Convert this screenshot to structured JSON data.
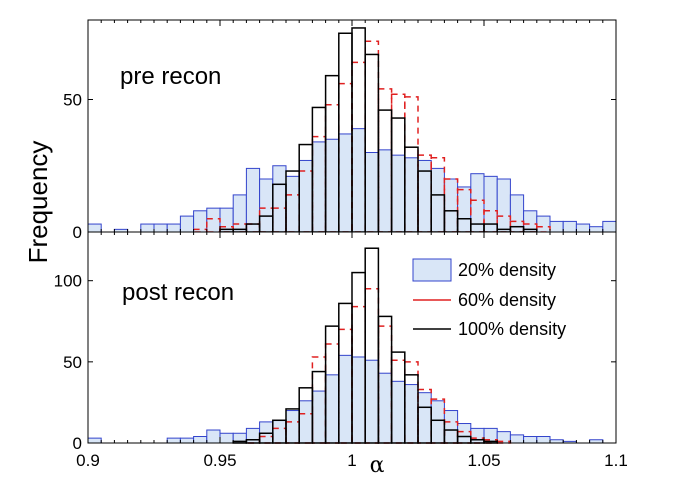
{
  "chart_data": {
    "type": "bar",
    "xlabel": "α",
    "ylabel": "Frequency",
    "xlim": [
      0.9,
      1.1
    ],
    "xticks": [
      "0.9",
      "0.95",
      "1",
      "1.05",
      "1.1"
    ],
    "bin_edges": [
      0.9,
      0.905,
      0.91,
      0.915,
      0.92,
      0.925,
      0.93,
      0.935,
      0.94,
      0.945,
      0.95,
      0.955,
      0.96,
      0.965,
      0.97,
      0.975,
      0.98,
      0.985,
      0.99,
      0.995,
      1.0,
      1.005,
      1.01,
      1.015,
      1.02,
      1.025,
      1.03,
      1.035,
      1.04,
      1.045,
      1.05,
      1.055,
      1.06,
      1.065,
      1.07,
      1.075,
      1.08,
      1.085,
      1.09,
      1.095,
      1.1
    ],
    "legend": [
      {
        "label": "20% density",
        "color_fill": "#d9e6f7",
        "color_edge": "#3344cc",
        "style": "filled"
      },
      {
        "label": "60% density",
        "color_edge": "#e02020",
        "style": "dashed"
      },
      {
        "label": "100% density",
        "color_edge": "#000000",
        "style": "solid"
      }
    ],
    "panels": [
      {
        "label": "pre recon",
        "ylim": [
          0,
          80
        ],
        "yticks": [
          "0",
          "50"
        ],
        "series": [
          {
            "name": "20% density",
            "values": [
              3,
              0,
              1,
              0,
              3,
              3,
              3,
              6,
              8,
              9,
              9,
              14,
              24,
              20,
              25,
              21,
              27,
              34,
              35,
              37,
              39,
              30,
              31,
              29,
              28,
              27,
              24,
              20,
              17,
              22,
              21,
              20,
              14,
              8,
              6,
              4,
              4,
              3,
              2,
              4
            ]
          },
          {
            "name": "60% density",
            "values": [
              0,
              0,
              0,
              0,
              0,
              0,
              0,
              0,
              1,
              5,
              2,
              3,
              3,
              9,
              9,
              14,
              23,
              36,
              48,
              56,
              64,
              72,
              54,
              52,
              51,
              29,
              28,
              20,
              16,
              12,
              8,
              6,
              4,
              3,
              2,
              0,
              0,
              0,
              0,
              0
            ]
          },
          {
            "name": "100% density",
            "values": [
              0,
              0,
              0,
              0,
              0,
              0,
              0,
              0,
              0,
              0,
              1,
              1,
              3,
              6,
              18,
              23,
              33,
              47,
              59,
              75,
              77,
              67,
              46,
              43,
              32,
              23,
              14,
              8,
              5,
              3,
              3,
              1,
              2,
              1,
              0,
              0,
              0,
              0,
              0,
              0
            ]
          }
        ]
      },
      {
        "label": "post recon",
        "ylim": [
          0,
          130
        ],
        "yticks": [
          "0",
          "50",
          "100"
        ],
        "series": [
          {
            "name": "20% density",
            "values": [
              3,
              0,
              0,
              0,
              0,
              0,
              3,
              3,
              4,
              8,
              6,
              6,
              9,
              13,
              14,
              20,
              26,
              32,
              42,
              54,
              53,
              51,
              43,
              38,
              36,
              31,
              26,
              20,
              12,
              9,
              9,
              7,
              5,
              4,
              4,
              2,
              1,
              0,
              2,
              0
            ]
          },
          {
            "name": "60% density",
            "values": [
              0,
              0,
              0,
              0,
              0,
              0,
              0,
              0,
              0,
              0,
              0,
              0,
              2,
              4,
              9,
              13,
              18,
              53,
              61,
              70,
              84,
              95,
              72,
              51,
              50,
              33,
              27,
              13,
              7,
              3,
              2,
              1,
              0,
              0,
              0,
              0,
              0,
              0,
              0,
              0
            ]
          },
          {
            "name": "100% density",
            "values": [
              0,
              0,
              0,
              0,
              0,
              0,
              0,
              0,
              0,
              0,
              0,
              1,
              2,
              6,
              14,
              21,
              34,
              44,
              72,
              86,
              105,
              120,
              78,
              56,
              42,
              22,
              14,
              8,
              4,
              2,
              1,
              0,
              0,
              0,
              0,
              0,
              0,
              0,
              0,
              0
            ]
          }
        ]
      }
    ]
  }
}
